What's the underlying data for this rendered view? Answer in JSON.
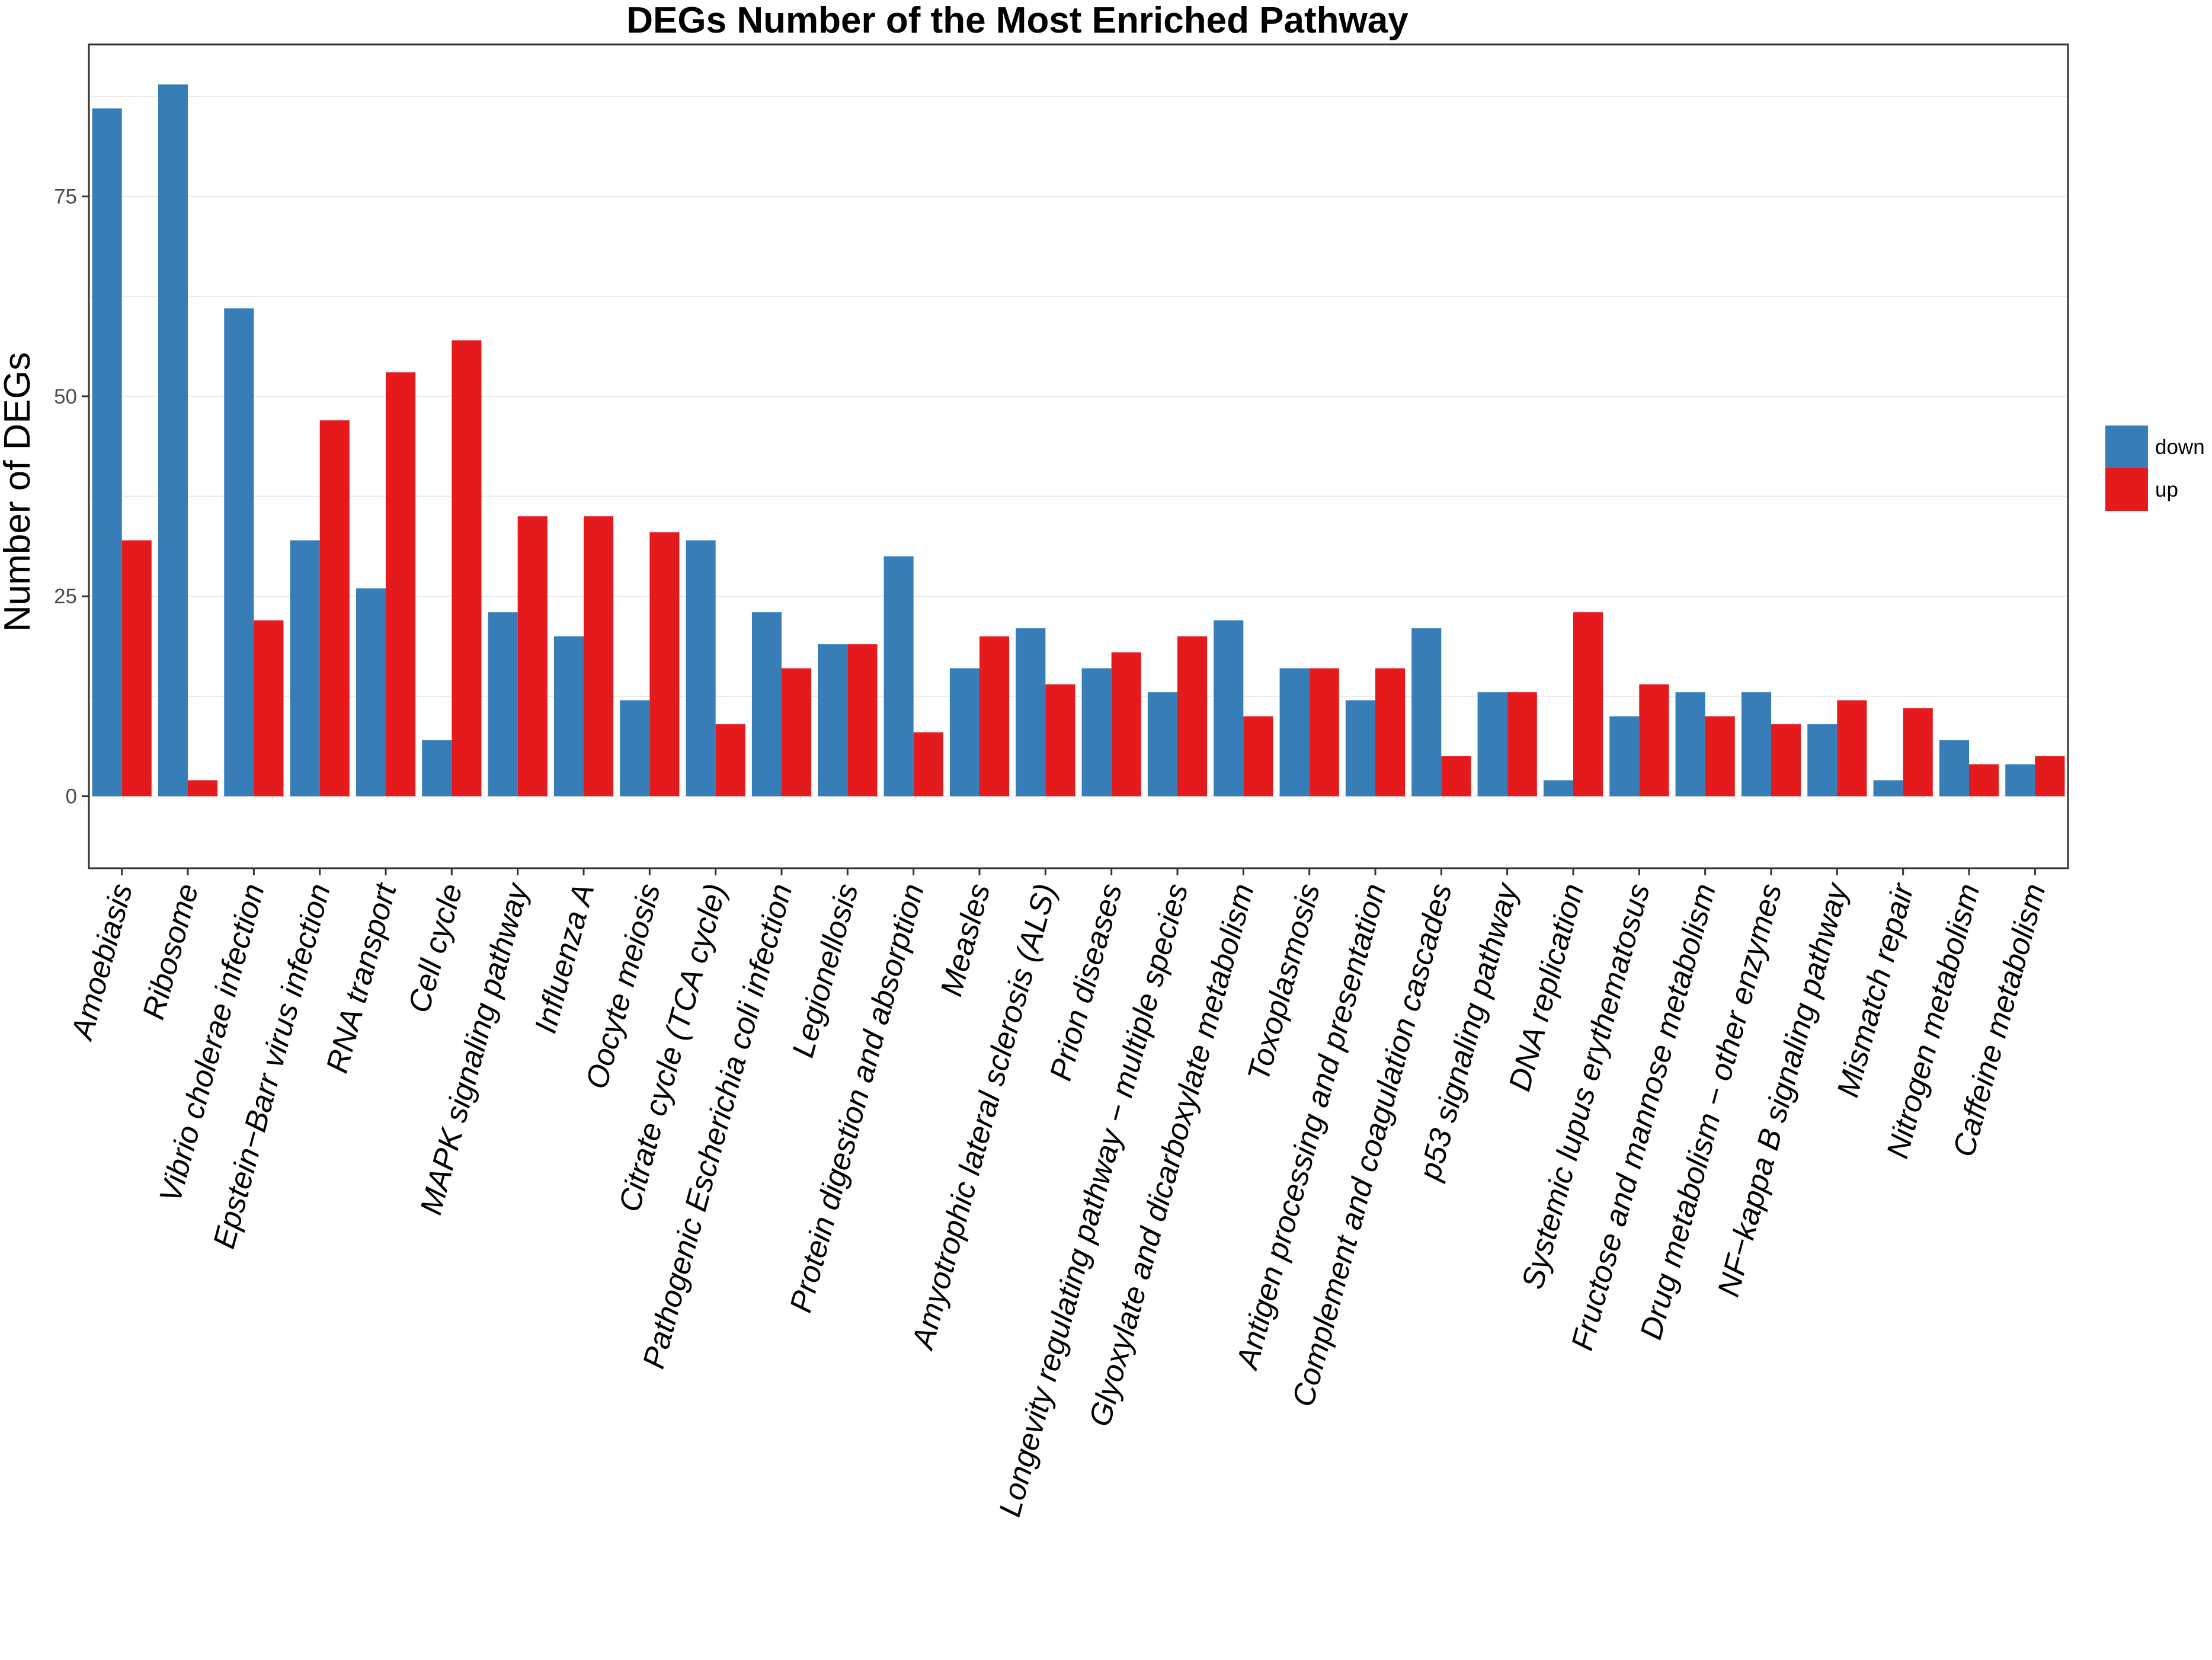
{
  "chart_data": {
    "type": "bar",
    "title": "DEGs Number of the Most Enriched Pathway",
    "xlabel": "",
    "ylabel": "Number of DEGs",
    "ylim": [
      -9,
      94
    ],
    "yticks": [
      0,
      25,
      50,
      75
    ],
    "grid": true,
    "legend_position": "right",
    "categories": [
      "Amoebiasis",
      "Ribosome",
      "Vibrio cholerae infection",
      "Epstein−Barr virus infection",
      "RNA transport",
      "Cell cycle",
      "MAPK signaling pathway",
      "Influenza A",
      "Oocyte meiosis",
      "Citrate cycle (TCA cycle)",
      "Pathogenic Escherichia coli infection",
      "Legionellosis",
      "Protein digestion and absorption",
      "Measles",
      "Amyotrophic lateral sclerosis (ALS)",
      "Prion diseases",
      "Longevity regulating pathway − multiple species",
      "Glyoxylate and dicarboxylate metabolism",
      "Toxoplasmosis",
      "Antigen processing and presentation",
      "Complement and coagulation cascades",
      "p53 signaling pathway",
      "DNA replication",
      "Systemic lupus erythematosus",
      "Fructose and mannose metabolism",
      "Drug metabolism − other enzymes",
      "NF−kappa B signaling pathway",
      "Mismatch repair",
      "Nitrogen metabolism",
      "Caffeine metabolism"
    ],
    "series": [
      {
        "name": "down",
        "color": "#377eb8",
        "values": [
          86,
          89,
          61,
          32,
          26,
          7,
          23,
          20,
          12,
          32,
          23,
          19,
          30,
          16,
          21,
          16,
          13,
          22,
          16,
          12,
          21,
          13,
          2,
          10,
          13,
          13,
          9,
          2,
          7,
          4
        ]
      },
      {
        "name": "up",
        "color": "#e41a1c",
        "values": [
          32,
          2,
          22,
          47,
          53,
          57,
          35,
          35,
          33,
          9,
          16,
          19,
          8,
          20,
          14,
          18,
          20,
          10,
          16,
          16,
          5,
          13,
          23,
          14,
          10,
          9,
          12,
          11,
          4,
          5
        ]
      }
    ]
  }
}
